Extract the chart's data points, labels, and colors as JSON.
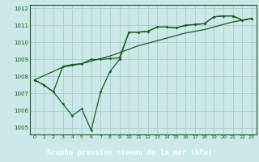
{
  "title": "Graphe pression niveau de la mer (hPa)",
  "bg_color": "#cce8e8",
  "label_bg_color": "#5aaa5a",
  "grid_color": "#aacccc",
  "line_color": "#1a5c1a",
  "ylim": [
    1004.6,
    1012.2
  ],
  "xlim": [
    -0.5,
    23.5
  ],
  "yticks": [
    1005,
    1006,
    1007,
    1008,
    1009,
    1010,
    1011,
    1012
  ],
  "xticks": [
    0,
    1,
    2,
    3,
    4,
    5,
    6,
    7,
    8,
    9,
    10,
    11,
    12,
    13,
    14,
    15,
    16,
    17,
    18,
    19,
    20,
    21,
    22,
    23
  ],
  "series1": [
    1007.8,
    1007.5,
    1007.1,
    1006.4,
    1005.7,
    1006.1,
    1004.85,
    1007.1,
    1008.3,
    1009.0,
    1010.6,
    1010.6,
    1010.65,
    1010.9,
    1010.9,
    1010.85,
    1011.0,
    1011.05,
    1011.1,
    1011.5,
    1011.55,
    1011.55,
    1011.3,
    1011.4
  ],
  "series2": [
    1007.8,
    1007.5,
    1007.1,
    1008.6,
    1008.7,
    1008.75,
    1009.0,
    1009.0,
    1009.05,
    1009.1,
    1010.6,
    1010.6,
    1010.65,
    1010.9,
    1010.9,
    1010.85,
    1011.0,
    1011.05,
    1011.1,
    1011.5,
    1011.55,
    1011.55,
    1011.3,
    1011.4
  ],
  "trend": [
    1007.8,
    1008.05,
    1008.3,
    1008.55,
    1008.65,
    1008.75,
    1008.9,
    1009.05,
    1009.2,
    1009.4,
    1009.6,
    1009.8,
    1009.95,
    1010.1,
    1010.25,
    1010.4,
    1010.55,
    1010.65,
    1010.75,
    1010.9,
    1011.05,
    1011.2,
    1011.3,
    1011.4
  ]
}
